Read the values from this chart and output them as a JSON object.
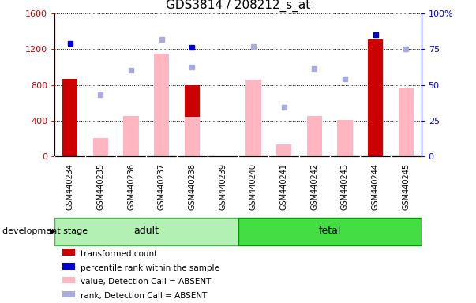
{
  "title": "GDS3814 / 208212_s_at",
  "categories": [
    "GSM440234",
    "GSM440235",
    "GSM440236",
    "GSM440237",
    "GSM440238",
    "GSM440239",
    "GSM440240",
    "GSM440241",
    "GSM440242",
    "GSM440243",
    "GSM440244",
    "GSM440245"
  ],
  "left_ylim": [
    0,
    1600
  ],
  "right_ylim": [
    0,
    100
  ],
  "left_yticks": [
    0,
    400,
    800,
    1200,
    1600
  ],
  "right_yticks": [
    0,
    25,
    50,
    75,
    100
  ],
  "left_yticklabels": [
    "0",
    "400",
    "800",
    "1200",
    "1600"
  ],
  "right_yticklabels": [
    "0",
    "25",
    "50",
    "75",
    "100%"
  ],
  "left_tick_color": "#cc0000",
  "right_tick_color": "#0000cc",
  "bar_red_values": [
    870,
    0,
    0,
    0,
    800,
    0,
    0,
    0,
    0,
    0,
    1310,
    0
  ],
  "bar_pink_values": [
    0,
    200,
    450,
    1150,
    440,
    0,
    860,
    130,
    450,
    405,
    0,
    760
  ],
  "dot_blue_values": [
    1270,
    0,
    0,
    0,
    1220,
    0,
    0,
    0,
    0,
    0,
    1360,
    0
  ],
  "dot_lightblue_values": [
    0,
    690,
    960,
    1310,
    1000,
    0,
    1230,
    545,
    985,
    870,
    0,
    1200
  ],
  "group_adult_indices": [
    0,
    5
  ],
  "group_fetal_indices": [
    6,
    11
  ],
  "group_adult_label": "adult",
  "group_fetal_label": "fetal",
  "group_adult_color": "#b3f0b3",
  "group_fetal_color": "#44dd44",
  "tick_label_area_color": "#c8c8c8",
  "tick_label_sep_color": "#ffffff",
  "legend_labels": [
    "transformed count",
    "percentile rank within the sample",
    "value, Detection Call = ABSENT",
    "rank, Detection Call = ABSENT"
  ],
  "legend_colors": [
    "#cc0000",
    "#0000cc",
    "#ffb6c1",
    "#aaaadd"
  ],
  "development_stage_label": "development stage",
  "bar_width": 0.5
}
